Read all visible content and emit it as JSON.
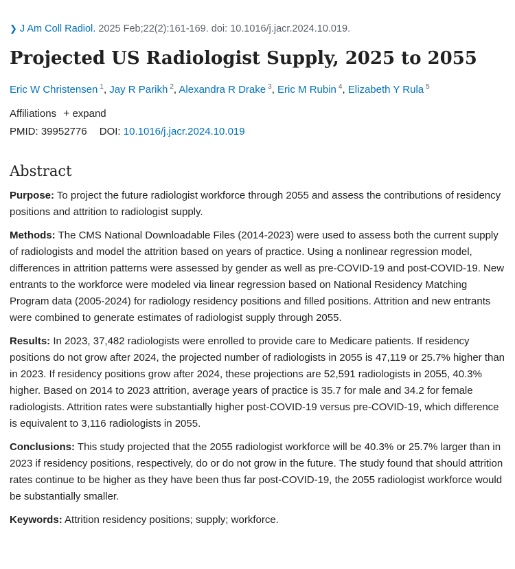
{
  "citation": {
    "journal": "J Am Coll Radiol.",
    "details": "2025 Feb;22(2):161-169. doi: 10.1016/j.jacr.2024.10.019."
  },
  "title": "Projected US Radiologist Supply, 2025 to 2055",
  "authors": [
    {
      "name": "Eric W Christensen",
      "sup": "1"
    },
    {
      "name": "Jay R Parikh",
      "sup": "2"
    },
    {
      "name": "Alexandra R Drake",
      "sup": "3"
    },
    {
      "name": "Eric M Rubin",
      "sup": "4"
    },
    {
      "name": "Elizabeth Y Rula",
      "sup": "5"
    }
  ],
  "affiliations": {
    "label": "Affiliations",
    "expand": "expand"
  },
  "ids": {
    "pmid_label": "PMID:",
    "pmid": "39952776",
    "doi_label": "DOI:",
    "doi": "10.1016/j.jacr.2024.10.019"
  },
  "abstract": {
    "heading": "Abstract",
    "sections": [
      {
        "label": "Purpose:",
        "text": "To project the future radiologist workforce through 2055 and assess the contributions of residency positions and attrition to radiologist supply."
      },
      {
        "label": "Methods:",
        "text": "The CMS National Downloadable Files (2014-2023) were used to assess both the current supply of radiologists and model the attrition based on years of practice. Using a nonlinear regression model, differences in attrition patterns were assessed by gender as well as pre-COVID-19 and post-COVID-19. New entrants to the workforce were modeled via linear regression based on National Residency Matching Program data (2005-2024) for radiology residency positions and filled positions. Attrition and new entrants were combined to generate estimates of radiologist supply through 2055."
      },
      {
        "label": "Results:",
        "text": "In 2023, 37,482 radiologists were enrolled to provide care to Medicare patients. If residency positions do not grow after 2024, the projected number of radiologists in 2055 is 47,119 or 25.7% higher than in 2023. If residency positions grow after 2024, these projections are 52,591 radiologists in 2055, 40.3% higher. Based on 2014 to 2023 attrition, average years of practice is 35.7 for male and 34.2 for female radiologists. Attrition rates were substantially higher post-COVID-19 versus pre-COVID-19, which difference is equivalent to 3,116 radiologists in 2055."
      },
      {
        "label": "Conclusions:",
        "text": "This study projected that the 2055 radiologist workforce will be 40.3% or 25.7% larger than in 2023 if residency positions, respectively, do or do not grow in the future. The study found that should attrition rates continue to be higher as they have been thus far post-COVID-19, the 2055 radiologist workforce would be substantially smaller."
      }
    ]
  },
  "keywords": {
    "label": "Keywords:",
    "text": "Attrition residency positions; supply; workforce."
  }
}
